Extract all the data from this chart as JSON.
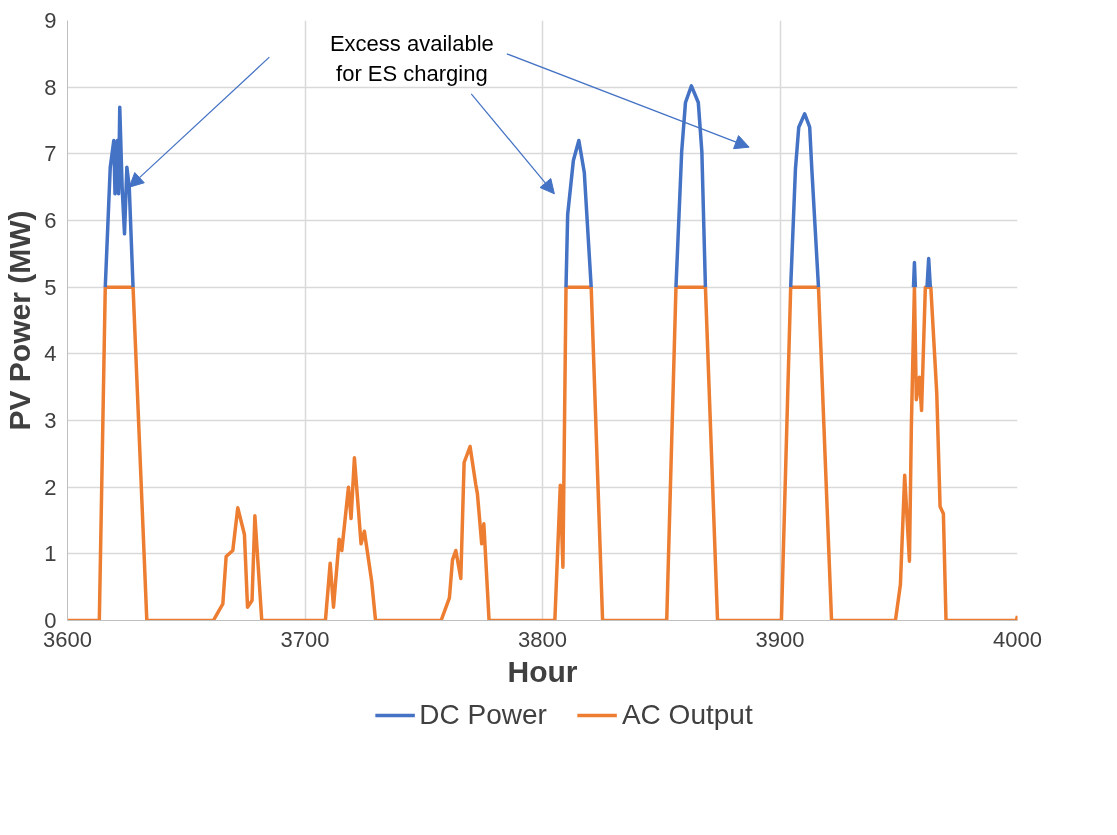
{
  "chart_data": {
    "type": "line",
    "xlabel": "Hour",
    "ylabel": "PV Power (MW)",
    "xlim": [
      3600,
      4000
    ],
    "xticks": [
      3600,
      3700,
      3800,
      3900,
      4000
    ],
    "ylim": [
      0,
      9
    ],
    "yticks": [
      0,
      1,
      2,
      3,
      4,
      5,
      6,
      7,
      8,
      9
    ],
    "grid": true,
    "legend": "bottom",
    "line_style": "solid",
    "marker": "none",
    "annotations": [
      "Excess available\nfor ES charging"
    ],
    "series": [
      {
        "name": "DC Power",
        "color": "#4472c4",
        "x": [
          3615.9,
          3618,
          3619.5,
          3620,
          3621,
          3621.5,
          3622,
          3623,
          3624,
          3625,
          3626,
          3627.6,
          3700,
          3809.9,
          3810.6,
          3813,
          3815.3,
          3817.6,
          3820.5,
          3840,
          3856.2,
          3858.6,
          3860.2,
          3862.7,
          3865.6,
          3867.1,
          3868.6,
          3885,
          3904.5,
          3906.5,
          3907.9,
          3910.4,
          3912.5,
          3913.4,
          3916.2,
          3935,
          3956.2,
          3956.6,
          3957.0,
          3960,
          3961.9,
          3962.6,
          3963.3
        ],
        "values": [
          5,
          6.8,
          7.2,
          6.4,
          7.2,
          6.4,
          7.7,
          6.5,
          5.8,
          6.8,
          6.5,
          5,
          null,
          5,
          6.09,
          6.9,
          7.2,
          6.72,
          5,
          null,
          5,
          7.03,
          7.77,
          8.02,
          7.77,
          7.03,
          5,
          null,
          5,
          6.77,
          7.4,
          7.6,
          7.4,
          6.77,
          5,
          null,
          5,
          5.37,
          5,
          null,
          5,
          5.43,
          5
        ]
      },
      {
        "name": "AC Output",
        "color": "#ed7d31",
        "x": [
          3600,
          3613.4,
          3615.9,
          3627.6,
          3633.4,
          3661.4,
          3665.4,
          3666.8,
          3669.6,
          3671.7,
          3674.5,
          3675.8,
          3677.7,
          3678.9,
          3681.8,
          3708.6,
          3710.6,
          3712.0,
          3714.4,
          3715.5,
          3718.3,
          3719.4,
          3720.8,
          3723.6,
          3725.0,
          3728.1,
          3729.7,
          3757.3,
          3760.8,
          3762.1,
          3763.5,
          3765.6,
          3767.0,
          3769.5,
          3771.9,
          3772.6,
          3774.4,
          3775.3,
          3777.5,
          3805.2,
          3807.5,
          3808.6,
          3809.9,
          3820.5,
          3825.3,
          3852.3,
          3856.2,
          3868.6,
          3873.7,
          3900.6,
          3904.5,
          3916.2,
          3921.7,
          3948.6,
          3950.7,
          3952.5,
          3954.5,
          3955.3,
          3956.6,
          3957.4,
          3958.7,
          3959.6,
          3961.2,
          3963.5,
          3966.0,
          3967.4,
          3968.8,
          3969.9,
          3999.5,
          4000
        ],
        "values": [
          0,
          0,
          5,
          5,
          0,
          0,
          0.25,
          0.96,
          1.05,
          1.69,
          1.29,
          0.2,
          0.3,
          1.57,
          0,
          0,
          0.86,
          0.2,
          1.22,
          1.05,
          2.0,
          1.53,
          2.44,
          1.15,
          1.34,
          0.58,
          0,
          0,
          0.34,
          0.91,
          1.05,
          0.63,
          2.37,
          2.61,
          2.04,
          1.9,
          1.15,
          1.45,
          0,
          0,
          2.03,
          0.8,
          5,
          5,
          0,
          0,
          5,
          5,
          0,
          0,
          5,
          5,
          0,
          0,
          0.54,
          2.18,
          0.89,
          2.89,
          5,
          3.31,
          3.65,
          3.15,
          5,
          5,
          3.41,
          1.71,
          1.6,
          0,
          0,
          0.07
        ]
      }
    ]
  }
}
